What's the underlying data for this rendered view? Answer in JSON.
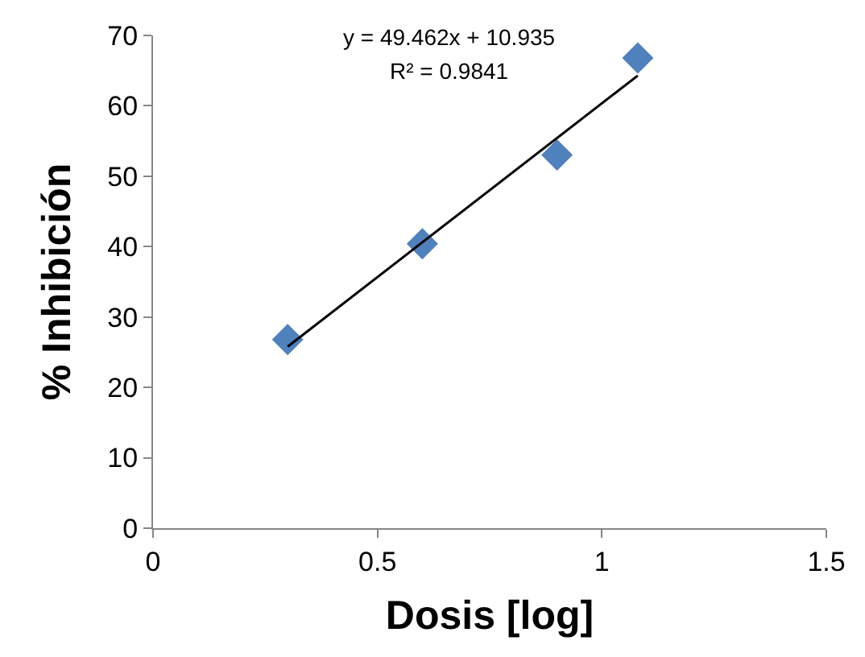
{
  "chart_data": {
    "type": "scatter",
    "xlabel": "Dosis [log]",
    "ylabel": "% Inhibición",
    "x": [
      0.3,
      0.6,
      0.9,
      1.08
    ],
    "series": [
      {
        "color": "#4f81bd",
        "values": [
          26.8,
          40.4,
          53.0,
          66.8
        ],
        "marker": "diamond"
      },
      {
        "type": "line",
        "color": "#000000",
        "x": [
          0.3,
          1.08
        ],
        "values": [
          25.8,
          64.3
        ],
        "marker": "none",
        "line_style": "solid"
      }
    ],
    "annotations": [
      "y = 49.462x + 10.935",
      "R² = 0.9841"
    ],
    "xlim": [
      0,
      1.5
    ],
    "xticks": [
      0,
      0.5,
      1,
      1.5
    ],
    "ylim": [
      0,
      70
    ],
    "yticks": [
      0,
      10,
      20,
      30,
      40,
      50,
      60,
      70
    ]
  }
}
